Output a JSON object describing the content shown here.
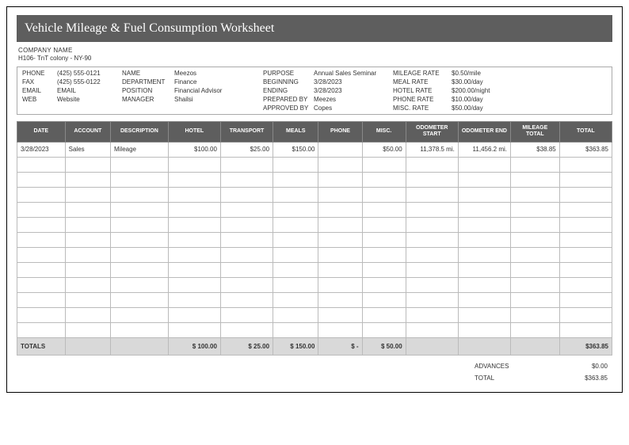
{
  "title": "Vehicle Mileage & Fuel Consumption Worksheet",
  "company": {
    "name": "COMPANY NAME",
    "address": "H106- TnT colony - NY-90"
  },
  "info": {
    "col1": [
      {
        "label": "PHONE",
        "value": "(425) 555-0121"
      },
      {
        "label": "FAX",
        "value": "(425) 555-0122"
      },
      {
        "label": "EMAIL",
        "value": "EMAIL"
      },
      {
        "label": "WEB",
        "value": "Website"
      }
    ],
    "col2": [
      {
        "label": "NAME",
        "value": "Meezos"
      },
      {
        "label": "DEPARTMENT",
        "value": "Finance"
      },
      {
        "label": "POSITION",
        "value": "Financial Advisor"
      },
      {
        "label": "MANAGER",
        "value": "Shailsi"
      }
    ],
    "col3": [
      {
        "label": "PURPOSE",
        "value": "Annual Sales Seminar"
      },
      {
        "label": "BEGINNING",
        "value": "3/28/2023"
      },
      {
        "label": "ENDING",
        "value": "3/28/2023"
      },
      {
        "label": "PREPARED BY",
        "value": "Meezes"
      },
      {
        "label": "APPROVED BY",
        "value": "Copes"
      }
    ],
    "col4": [
      {
        "label": "MILEAGE RATE",
        "value": "$0.50/mile"
      },
      {
        "label": "MEAL RATE",
        "value": "$30.00/day"
      },
      {
        "label": "HOTEL RATE",
        "value": "$200.00/night"
      },
      {
        "label": "PHONE RATE",
        "value": "$10.00/day"
      },
      {
        "label": "MISC. RATE",
        "value": "$50.00/day"
      }
    ]
  },
  "columns": [
    "DATE",
    "ACCOUNT",
    "DESCRIPTION",
    "HOTEL",
    "TRANSPORT",
    "MEALS",
    "PHONE",
    "MISC.",
    "ODOMETER START",
    "ODOMETER END",
    "MILEAGE TOTAL",
    "TOTAL"
  ],
  "row1": {
    "date": "3/28/2023",
    "account": "Sales",
    "description": "Mileage",
    "hotel": "$100.00",
    "transport": "$25.00",
    "meals": "$150.00",
    "phone": "",
    "misc": "$50.00",
    "odo_start": "11,378.5  mi.",
    "odo_end": "11,456.2  mi.",
    "mileage_total": "$38.85",
    "total": "$363.85"
  },
  "empty_rows": 12,
  "totals": {
    "label": "TOTALS",
    "hotel": "$        100.00",
    "transport": "$         25.00",
    "meals": "$        150.00",
    "phone": "$              -",
    "misc": "$         50.00",
    "total": "$363.85"
  },
  "summary": {
    "advances": {
      "label": "ADVANCES",
      "value": "$0.00"
    },
    "total": {
      "label": "TOTAL",
      "value": "$363.85"
    }
  }
}
